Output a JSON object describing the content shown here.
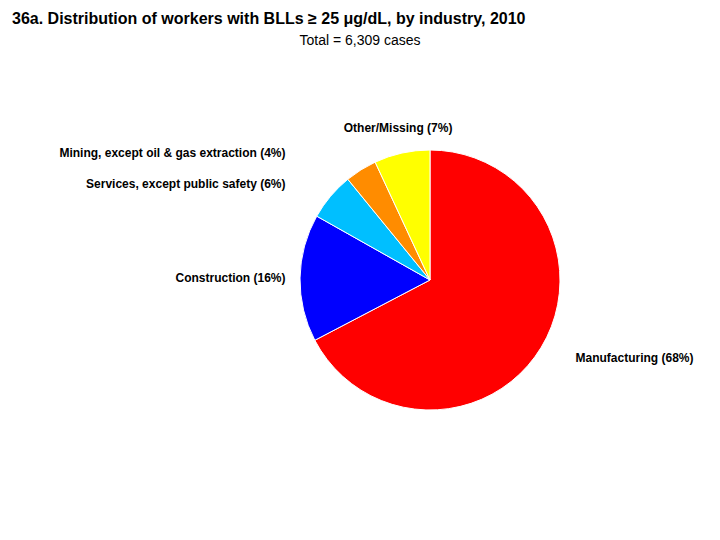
{
  "chart_data": {
    "type": "pie",
    "title": "36a. Distribution of workers with BLLs ≥ 25 μg/dL, by industry, 2010",
    "subtitle": "Total = 6,309 cases",
    "categories": [
      "Manufacturing (68%)",
      "Construction (16%)",
      "Services, except public safety (6%)",
      "Mining, except oil & gas extraction (4%)",
      "Other/Missing (7%)"
    ],
    "values": [
      68,
      16,
      6,
      4,
      7
    ],
    "colors": [
      "#ff0000",
      "#0000ff",
      "#00bfff",
      "#ff8c00",
      "#ffff00"
    ]
  }
}
